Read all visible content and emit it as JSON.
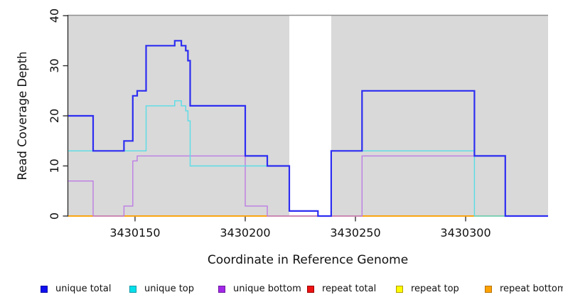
{
  "chart_data": {
    "type": "line",
    "subtype": "step-coverage",
    "title": "",
    "xlabel": "Coordinate in Reference Genome",
    "ylabel": "Read Coverage Depth",
    "xlim": [
      3430119.7,
      3430337.4
    ],
    "ylim": [
      0,
      40
    ],
    "x_ticks": [
      3430150,
      3430200,
      3430250,
      3430300
    ],
    "x_tick_labels": [
      "3430150",
      "3430200",
      "3430250",
      "3430300"
    ],
    "y_ticks": [
      0,
      10,
      20,
      30,
      40
    ],
    "y_tick_labels": [
      "0",
      "10",
      "20",
      "30",
      "40"
    ],
    "grid": false,
    "background_bands": {
      "color": "#d9d9d9",
      "regions": [
        [
          3430119.7,
          3430220
        ],
        [
          3430239,
          3430337.4
        ]
      ]
    },
    "gap_region": [
      3430220,
      3430239
    ],
    "axis_color": "#262626",
    "top_border_color": "#8f8f8f",
    "series": [
      {
        "name": "repeat total",
        "color": "#e04040",
        "legend_fill": "#ee1111",
        "legend_border": "#990000",
        "width": 1.4,
        "steps": [
          [
            3430119.7,
            0
          ]
        ]
      },
      {
        "name": "repeat top",
        "color": "#f0e000",
        "legend_fill": "#fdfd00",
        "legend_border": "#b09a00",
        "width": 1.4,
        "steps": [
          [
            3430119.7,
            0
          ]
        ]
      },
      {
        "name": "repeat bottom",
        "color": "#ff9d00",
        "legend_fill": "#ffa200",
        "legend_border": "#b4720a",
        "width": 1.4,
        "steps": [
          [
            3430119.7,
            0
          ]
        ]
      },
      {
        "name": "unique bottom",
        "color": "#bd7ce4",
        "legend_fill": "#a227e8",
        "legend_border": "#6d1a9e",
        "width": 1.4,
        "steps": [
          [
            3430119.7,
            7
          ],
          [
            3430131,
            0
          ],
          [
            3430145,
            2
          ],
          [
            3430149,
            11
          ],
          [
            3430151,
            12
          ],
          [
            3430200,
            2
          ],
          [
            3430210,
            0
          ],
          [
            3430253,
            12
          ],
          [
            3430318,
            0
          ]
        ]
      },
      {
        "name": "unique top",
        "color": "#58dde6",
        "legend_fill": "#00e0ea",
        "legend_border": "#0e98a8",
        "width": 1.4,
        "steps": [
          [
            3430119.7,
            13
          ],
          [
            3430155,
            22
          ],
          [
            3430168,
            23
          ],
          [
            3430171,
            22
          ],
          [
            3430173,
            21
          ],
          [
            3430174,
            19
          ],
          [
            3430175,
            10
          ],
          [
            3430220,
            1
          ],
          [
            3430233,
            0
          ],
          [
            3430239,
            13
          ],
          [
            3430304,
            0
          ]
        ]
      },
      {
        "name": "unique total",
        "color": "#2d2df2",
        "legend_fill": "#0f0ff0",
        "legend_border": "#0a0aa8",
        "width": 2.2,
        "steps": [
          [
            3430119.7,
            20
          ],
          [
            3430131,
            13
          ],
          [
            3430145,
            15
          ],
          [
            3430149,
            24
          ],
          [
            3430151,
            25
          ],
          [
            3430155,
            34
          ],
          [
            3430168,
            35
          ],
          [
            3430171,
            34
          ],
          [
            3430173,
            33
          ],
          [
            3430174,
            31
          ],
          [
            3430175,
            22
          ],
          [
            3430200,
            12
          ],
          [
            3430210,
            10
          ],
          [
            3430220,
            1
          ],
          [
            3430233,
            0
          ],
          [
            3430239,
            13
          ],
          [
            3430253,
            25
          ],
          [
            3430304,
            12
          ],
          [
            3430318,
            0
          ]
        ]
      }
    ],
    "legend": {
      "position": "bottom",
      "entries": [
        {
          "label": "unique total",
          "fill": "#0f0ff0",
          "border": "#0a0aa8"
        },
        {
          "label": "unique top",
          "fill": "#00e0ea",
          "border": "#0e98a8"
        },
        {
          "label": "unique bottom",
          "fill": "#a227e8",
          "border": "#6d1a9e"
        },
        {
          "label": "repeat total",
          "fill": "#ee1111",
          "border": "#990000"
        },
        {
          "label": "repeat top",
          "fill": "#fdfd00",
          "border": "#b09a00"
        },
        {
          "label": "repeat bottom",
          "fill": "#ffa200",
          "border": "#b4720a"
        }
      ]
    }
  }
}
